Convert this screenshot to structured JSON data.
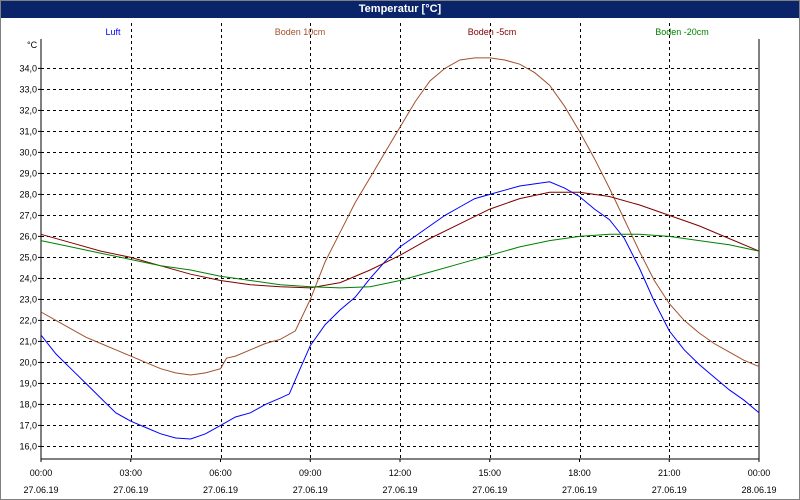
{
  "window": {
    "title": "Temperatur [°C]"
  },
  "chart_data": {
    "type": "line",
    "title": "Temperatur [°C]",
    "ylabel": "°C",
    "xlabel": "",
    "ylim": [
      15.4,
      35.4
    ],
    "xlim": [
      0,
      24
    ],
    "grid": true,
    "legend_placement": "top",
    "yticks": [
      16.0,
      17.0,
      18.0,
      19.0,
      20.0,
      21.0,
      22.0,
      23.0,
      24.0,
      25.0,
      26.0,
      27.0,
      28.0,
      29.0,
      30.0,
      31.0,
      32.0,
      33.0,
      34.0
    ],
    "ytick_labels": [
      "16,0",
      "17,0",
      "18,0",
      "19,0",
      "20,0",
      "21,0",
      "22,0",
      "23,0",
      "24,0",
      "25,0",
      "26,0",
      "27,0",
      "28,0",
      "29,0",
      "30,0",
      "31,0",
      "32,0",
      "33,0",
      "34,0"
    ],
    "xticks": [
      0,
      3,
      6,
      9,
      12,
      15,
      18,
      21,
      24
    ],
    "xtick_labels": [
      [
        "00:00",
        "27.06.19"
      ],
      [
        "03:00",
        "27.06.19"
      ],
      [
        "06:00",
        "27.06.19"
      ],
      [
        "09:00",
        "27.06.19"
      ],
      [
        "12:00",
        "27.06.19"
      ],
      [
        "15:00",
        "27.06.19"
      ],
      [
        "18:00",
        "27.06.19"
      ],
      [
        "21:00",
        "27.06.19"
      ],
      [
        "00:00",
        "28.06.19"
      ]
    ],
    "series": [
      {
        "name": "Luft",
        "color": "#0000ff",
        "x": [
          0,
          0.5,
          1,
          1.5,
          2,
          2.5,
          3,
          3.5,
          4,
          4.5,
          5,
          5.5,
          6,
          6.5,
          7,
          7.5,
          8,
          8.3,
          8.6,
          9,
          9.5,
          10,
          10.5,
          11,
          11.5,
          12,
          12.5,
          13,
          13.5,
          14,
          14.5,
          15,
          15.5,
          16,
          16.5,
          17,
          17.5,
          18,
          18.5,
          19,
          19.5,
          20,
          20.5,
          21,
          21.5,
          22,
          22.5,
          23,
          23.5,
          24
        ],
        "y": [
          21.3,
          20.4,
          19.7,
          19.0,
          18.3,
          17.6,
          17.2,
          16.9,
          16.6,
          16.4,
          16.35,
          16.6,
          17.0,
          17.4,
          17.6,
          18.0,
          18.3,
          18.5,
          19.5,
          20.8,
          21.8,
          22.5,
          23.1,
          24.0,
          24.8,
          25.5,
          26.0,
          26.5,
          27.0,
          27.4,
          27.8,
          28.0,
          28.2,
          28.4,
          28.5,
          28.6,
          28.3,
          27.9,
          27.3,
          26.8,
          25.9,
          24.5,
          22.9,
          21.5,
          20.6,
          19.9,
          19.3,
          18.7,
          18.2,
          17.6
        ]
      },
      {
        "name": "Boden 10cm",
        "color": "#a0522d",
        "x": [
          0,
          0.5,
          1,
          1.5,
          2,
          2.5,
          3,
          3.5,
          4,
          4.5,
          5,
          5.5,
          6,
          6.2,
          6.5,
          7,
          7.5,
          8,
          8.5,
          9,
          9.5,
          10,
          10.5,
          11,
          11.5,
          12,
          12.5,
          13,
          13.5,
          14,
          14.5,
          15,
          15.5,
          16,
          16.5,
          17,
          17.5,
          18,
          18.5,
          19,
          19.5,
          20,
          20.5,
          21,
          21.5,
          22,
          22.5,
          23,
          23.5,
          24
        ],
        "y": [
          22.4,
          22.0,
          21.6,
          21.2,
          20.9,
          20.6,
          20.3,
          20.0,
          19.7,
          19.5,
          19.4,
          19.5,
          19.7,
          20.2,
          20.3,
          20.6,
          20.9,
          21.1,
          21.5,
          23.0,
          24.8,
          26.2,
          27.6,
          28.8,
          30.0,
          31.2,
          32.4,
          33.4,
          34.0,
          34.4,
          34.5,
          34.5,
          34.4,
          34.2,
          33.8,
          33.2,
          32.2,
          31.0,
          29.7,
          28.3,
          26.8,
          25.3,
          23.9,
          22.8,
          22.0,
          21.4,
          20.9,
          20.5,
          20.1,
          19.8
        ]
      },
      {
        "name": "Boden -5cm",
        "color": "#800000",
        "x": [
          0,
          1,
          2,
          3,
          4,
          5,
          6,
          7,
          8,
          9,
          10,
          11,
          12,
          13,
          14,
          15,
          16,
          17,
          18,
          19,
          20,
          21,
          22,
          23,
          24
        ],
        "y": [
          26.1,
          25.7,
          25.3,
          25.0,
          24.6,
          24.2,
          23.9,
          23.7,
          23.6,
          23.55,
          23.8,
          24.4,
          25.1,
          25.9,
          26.6,
          27.3,
          27.8,
          28.1,
          28.1,
          27.9,
          27.5,
          27.0,
          26.5,
          25.9,
          25.3
        ]
      },
      {
        "name": "Boden -20cm",
        "color": "#008000",
        "x": [
          0,
          1,
          2,
          3,
          4,
          5,
          6,
          7,
          8,
          9,
          10,
          11,
          12,
          13,
          14,
          15,
          16,
          17,
          18,
          19,
          20,
          21,
          22,
          23,
          24
        ],
        "y": [
          25.8,
          25.5,
          25.2,
          24.9,
          24.6,
          24.4,
          24.1,
          23.9,
          23.7,
          23.6,
          23.55,
          23.6,
          23.9,
          24.3,
          24.7,
          25.1,
          25.5,
          25.8,
          26.0,
          26.1,
          26.1,
          26.0,
          25.8,
          25.6,
          25.3
        ]
      }
    ]
  }
}
